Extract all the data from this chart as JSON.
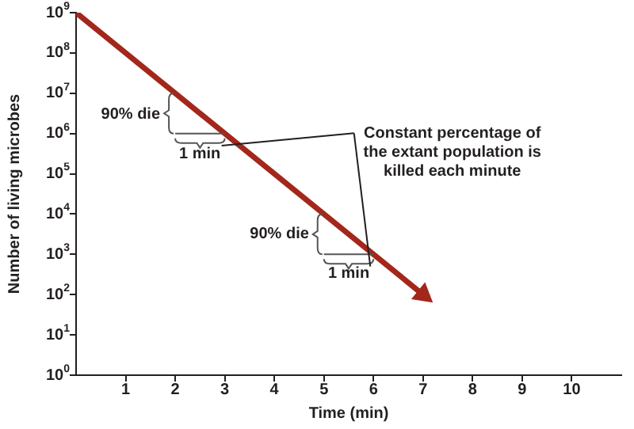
{
  "chart_data": {
    "type": "line",
    "xlabel": "Time (min)",
    "ylabel": "Number of living microbes",
    "x": [
      0,
      7
    ],
    "series": [
      {
        "color": "#a3271b",
        "values": [
          1000000000,
          100
        ]
      }
    ],
    "log": "y",
    "xlim": [
      0,
      11
    ],
    "ylim": [
      1,
      1000000000
    ],
    "xticks": [
      1,
      2,
      3,
      4,
      5,
      6,
      7,
      8,
      9,
      10
    ],
    "yticks": [
      {
        "value": 1,
        "label": "10$^{0}$"
      },
      {
        "value": 10,
        "label": "10$^{1}$"
      },
      {
        "value": 100,
        "label": "10$^{2}$"
      },
      {
        "value": 1000,
        "label": "10$^{3}$"
      },
      {
        "value": 10000,
        "label": "10$^{4}$"
      },
      {
        "value": 100000,
        "label": "10$^{5}$"
      },
      {
        "value": 1000000,
        "label": "10$^{6}$"
      },
      {
        "value": 10000000,
        "label": "10$^{7}$"
      },
      {
        "value": 100000000,
        "label": "10$^{8}$"
      },
      {
        "value": 1000000000,
        "label": "10$^{9}$"
      }
    ],
    "grid": false,
    "legend": false,
    "line_style": "solid",
    "annotations": [
      "90% die",
      "1 min",
      "90% die",
      "1 min",
      "Constant percentage of the extant population is killed each minute"
    ]
  }
}
